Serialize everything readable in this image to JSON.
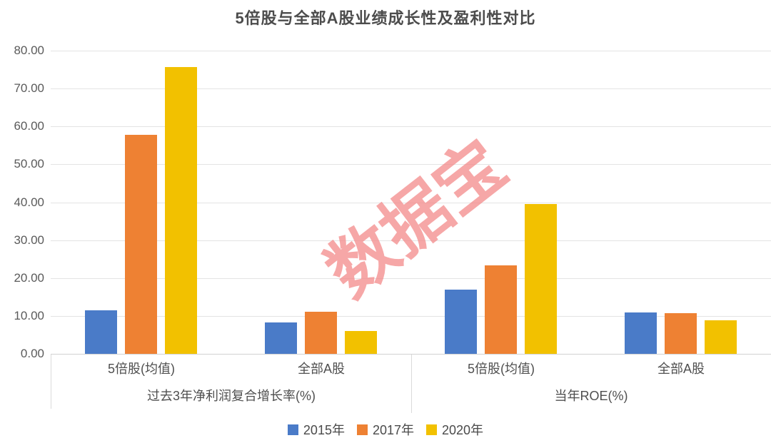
{
  "watermark": {
    "text": "数据宝",
    "color": "rgba(242,133,133,0.72)"
  },
  "chart_data": {
    "type": "bar",
    "title": "5倍股与全部A股业绩成长性及盈利性对比",
    "ylim": [
      0,
      80
    ],
    "yticks": [
      "0.00",
      "10.00",
      "20.00",
      "30.00",
      "40.00",
      "50.00",
      "60.00",
      "70.00",
      "80.00"
    ],
    "grid": true,
    "legend_position": "bottom",
    "axis_note": "two-tier category axis: categories within groups",
    "groups": [
      {
        "label": "过去3年净利润复合增长率(%)",
        "categories": [
          "5倍股(均值)",
          "全部A股"
        ]
      },
      {
        "label": "当年ROE(%)",
        "categories": [
          "5倍股(均值)",
          "全部A股"
        ]
      }
    ],
    "series": [
      {
        "name": "2015年",
        "color": "#4A7BC8",
        "values": [
          [
            11.5,
            8.2
          ],
          [
            17.0,
            10.9
          ]
        ]
      },
      {
        "name": "2017年",
        "color": "#EE8133",
        "values": [
          [
            57.7,
            11.2
          ],
          [
            23.3,
            10.7
          ]
        ]
      },
      {
        "name": "2020年",
        "color": "#F2C100",
        "values": [
          [
            75.6,
            6.0
          ],
          [
            39.5,
            8.9
          ]
        ]
      }
    ]
  }
}
